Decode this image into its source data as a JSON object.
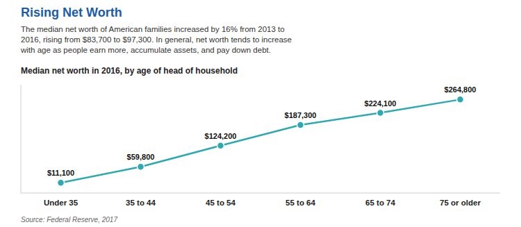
{
  "chart_data": {
    "type": "line",
    "title": "Rising Net Worth",
    "subtitle": "The median net worth of American families increased by 16% from 2013 to\n2016, rising from $83,700 to $97,300. In general, net worth tends to increase\nwith age as people earn more, accumulate assets, and pay down debt.",
    "annotations": [
      "Median net worth in 2016, by age of head of household",
      "Source: Federal Reserve, 2017"
    ],
    "categories": [
      "Under 35",
      "35 to 44",
      "45 to 54",
      "55 to 64",
      "65 to 74",
      "75 or older"
    ],
    "values": [
      11100,
      59800,
      124200,
      187300,
      224100,
      264800
    ],
    "value_labels": [
      "$11,100",
      "$59,800",
      "$124,200",
      "$187,300",
      "$224,100",
      "$264,800"
    ],
    "data_labels": true,
    "color": "#2baab1",
    "marker": "circle",
    "ylim": [
      -20000,
      310000
    ],
    "tick_labels": "x",
    "grid": false
  }
}
